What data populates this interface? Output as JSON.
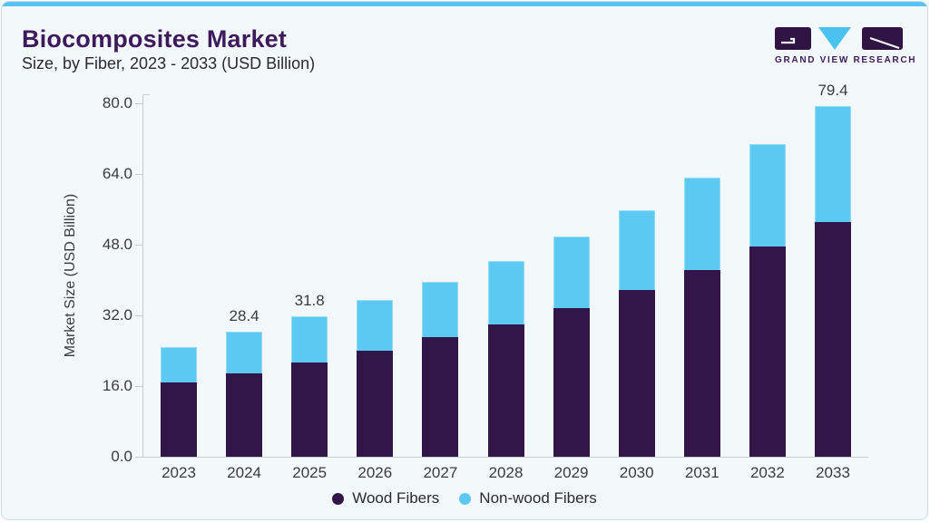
{
  "header": {
    "title": "Biocomposites Market",
    "subtitle": "Size, by Fiber, 2023 - 2033 (USD Billion)"
  },
  "logo": {
    "brand": "GRAND VIEW RESEARCH"
  },
  "chart_data": {
    "type": "bar",
    "stacked": true,
    "title": "Biocomposites Market Size, by Fiber, 2023 - 2033 (USD Billion)",
    "xlabel": "",
    "ylabel": "Market Size (USD Billion)",
    "ylim": [
      0,
      80
    ],
    "ytick_values": [
      0,
      16,
      32,
      48,
      64,
      80
    ],
    "ytick_labels": [
      "0.0",
      "16.0",
      "32.0",
      "48.0",
      "64.0",
      "80.0"
    ],
    "grid": false,
    "legend_position": "bottom",
    "categories": [
      "2023",
      "2024",
      "2025",
      "2026",
      "2027",
      "2028",
      "2029",
      "2030",
      "2031",
      "2032",
      "2033"
    ],
    "series": [
      {
        "name": "Wood Fibers",
        "color": "#321549",
        "values": [
          16.8,
          18.9,
          21.3,
          24.0,
          27.0,
          29.9,
          33.6,
          37.7,
          42.3,
          47.5,
          53.2
        ]
      },
      {
        "name": "Non-wood Fibers",
        "color": "#5cc9f3",
        "values": [
          8.1,
          9.5,
          10.5,
          11.4,
          12.6,
          14.5,
          16.3,
          18.1,
          20.8,
          23.3,
          26.2
        ]
      }
    ],
    "totals": [
      24.9,
      28.4,
      31.8,
      35.4,
      39.6,
      44.4,
      49.9,
      55.8,
      63.1,
      70.8,
      79.4
    ],
    "bar_value_labels": [
      "",
      "28.4",
      "31.8",
      "",
      "",
      "",
      "",
      "",
      "",
      "",
      "79.4"
    ]
  },
  "colors": {
    "card_background": "#f3f8fb",
    "card_border": "#c9dcea",
    "top_strip": "#58c3ee",
    "title_text": "#3c1a5b",
    "body_text": "#2b2a31",
    "axis_text": "#3a3a42",
    "axis_line": "#c9cdd3",
    "wood_fibers": "#321549",
    "non_wood_fibers": "#5cc9f3",
    "logo_purple": "#2f1444",
    "logo_blue": "#49c2f2"
  }
}
